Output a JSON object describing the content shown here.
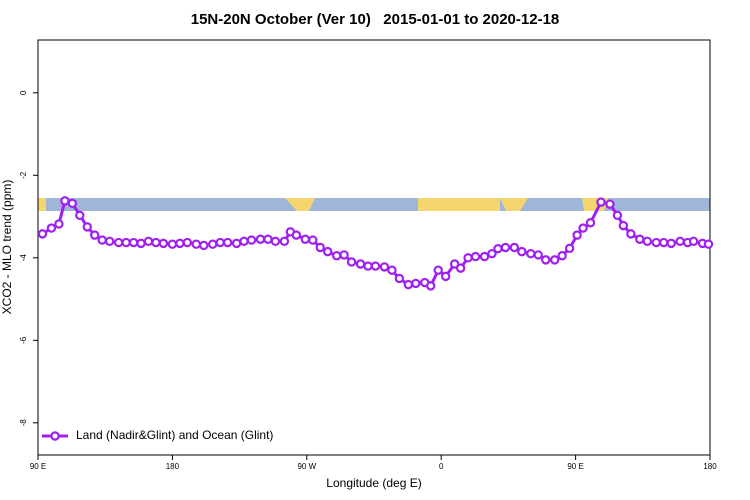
{
  "chart_data": {
    "type": "line",
    "title": "15N-20N October (Ver 10)   2015-01-01 to 2020-12-18",
    "xlabel": "Longitude (deg E)",
    "ylabel": "XCO2 - MLO trend (ppm)",
    "xlim": [
      90,
      540
    ],
    "xticks": [
      {
        "value": 90,
        "label": "90 E"
      },
      180,
      {
        "value": 270,
        "label": "90 W"
      },
      {
        "value": 360,
        "label": "0"
      },
      {
        "value": 450,
        "label": "90 E"
      },
      {
        "value": 540,
        "label": "180"
      }
    ],
    "ylim": [
      1.28,
      -8.78
    ],
    "yticks": [
      0,
      -2,
      -4,
      -6,
      -8
    ],
    "legend": "bottom-left",
    "series": [
      {
        "name": "Land (Nadir&Glint) and Ocean (Glint)",
        "color": "#a020f0",
        "x": [
          93,
          99,
          104,
          108,
          113,
          118,
          123,
          128,
          133,
          138,
          144,
          149,
          154,
          159,
          164,
          169,
          174,
          180,
          185,
          190,
          196,
          201,
          207,
          212,
          217,
          223,
          228,
          233,
          239,
          244,
          249,
          255,
          259,
          263,
          269,
          274,
          279,
          284,
          290,
          295,
          300,
          306,
          311,
          316,
          322,
          327,
          332,
          338,
          343,
          349,
          353,
          358,
          363,
          369,
          373,
          378,
          383,
          389,
          394,
          398,
          403,
          409,
          414,
          420,
          425,
          430,
          436,
          441,
          446,
          451,
          455,
          460,
          467,
          473,
          478,
          482,
          487,
          493,
          498,
          504,
          509,
          514,
          520,
          525,
          529,
          535,
          539
        ],
        "values": [
          -3.42,
          -3.28,
          -3.18,
          -2.62,
          -2.68,
          -2.97,
          -3.25,
          -3.45,
          -3.57,
          -3.6,
          -3.63,
          -3.63,
          -3.63,
          -3.65,
          -3.6,
          -3.63,
          -3.65,
          -3.67,
          -3.65,
          -3.63,
          -3.67,
          -3.7,
          -3.67,
          -3.63,
          -3.63,
          -3.65,
          -3.6,
          -3.57,
          -3.55,
          -3.55,
          -3.6,
          -3.6,
          -3.37,
          -3.45,
          -3.55,
          -3.57,
          -3.75,
          -3.85,
          -3.95,
          -3.93,
          -4.1,
          -4.15,
          -4.2,
          -4.2,
          -4.22,
          -4.3,
          -4.5,
          -4.65,
          -4.62,
          -4.6,
          -4.68,
          -4.3,
          -4.45,
          -4.15,
          -4.25,
          -4.0,
          -3.97,
          -3.97,
          -3.9,
          -3.78,
          -3.75,
          -3.75,
          -3.85,
          -3.9,
          -3.93,
          -4.05,
          -4.05,
          -3.95,
          -3.77,
          -3.45,
          -3.28,
          -3.15,
          -2.65,
          -2.7,
          -2.97,
          -3.22,
          -3.42,
          -3.55,
          -3.6,
          -3.63,
          -3.63,
          -3.65,
          -3.6,
          -3.63,
          -3.6,
          -3.65,
          -3.67
        ]
      }
    ]
  }
}
